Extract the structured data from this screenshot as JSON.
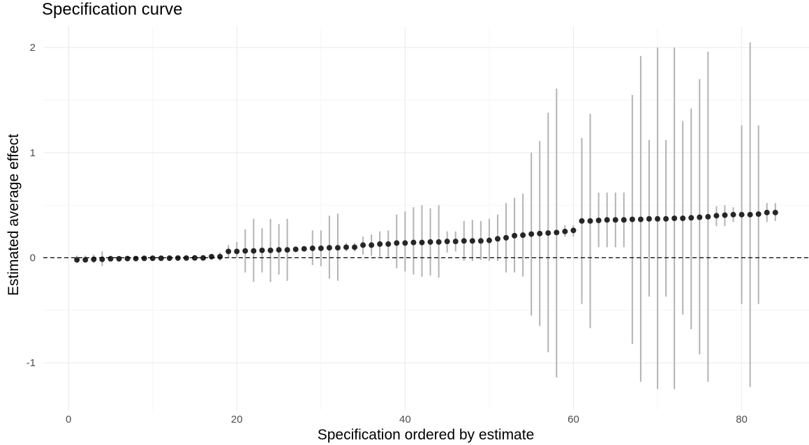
{
  "chart_data": {
    "type": "scatter",
    "title": "Specification curve",
    "xlabel": "Specification ordered by estimate",
    "ylabel": "Estimated average effect",
    "xlim": [
      -3,
      88
    ],
    "ylim": [
      -1.45,
      2.2
    ],
    "x_ticks": [
      0,
      20,
      40,
      60,
      80
    ],
    "x_tick_labels": [
      "0",
      "20",
      "40",
      "60",
      "80"
    ],
    "y_ticks": [
      -1,
      0,
      1,
      2
    ],
    "y_tick_labels": [
      "-1",
      "0",
      "1",
      "2"
    ],
    "reference_line": {
      "y": 0,
      "style": "dashed"
    },
    "grid": true,
    "legend": "none",
    "colors": {
      "point": "#262626",
      "interval": "#b3b3b3",
      "grid": "#ebebeb"
    },
    "series": [
      {
        "x": [
          1,
          2,
          3,
          4,
          5,
          6,
          7,
          8,
          9,
          10,
          11,
          12,
          13,
          14,
          15,
          16,
          17,
          18,
          19,
          20,
          21,
          22,
          23,
          24,
          25,
          26,
          27,
          28,
          29,
          30,
          31,
          32,
          33,
          34,
          35,
          36,
          37,
          38,
          39,
          40,
          41,
          42,
          43,
          44,
          45,
          46,
          47,
          48,
          49,
          50,
          51,
          52,
          53,
          54,
          55,
          56,
          57,
          58,
          59,
          60,
          61,
          62,
          63,
          64,
          65,
          66,
          67,
          68,
          69,
          70,
          71,
          72,
          73,
          74,
          75,
          76,
          77,
          78,
          79,
          80,
          81,
          82,
          83,
          84
        ],
        "estimate": [
          -0.02,
          -0.02,
          -0.015,
          -0.015,
          -0.01,
          -0.01,
          -0.008,
          -0.008,
          -0.006,
          -0.005,
          -0.005,
          -0.004,
          -0.003,
          -0.003,
          -0.002,
          -0.002,
          0.01,
          0.01,
          0.06,
          0.06,
          0.065,
          0.065,
          0.07,
          0.07,
          0.075,
          0.075,
          0.08,
          0.085,
          0.09,
          0.09,
          0.095,
          0.095,
          0.1,
          0.1,
          0.12,
          0.12,
          0.13,
          0.13,
          0.14,
          0.14,
          0.145,
          0.145,
          0.15,
          0.15,
          0.155,
          0.155,
          0.16,
          0.16,
          0.16,
          0.165,
          0.18,
          0.19,
          0.21,
          0.215,
          0.225,
          0.23,
          0.235,
          0.24,
          0.25,
          0.26,
          0.35,
          0.35,
          0.355,
          0.36,
          0.36,
          0.36,
          0.365,
          0.365,
          0.37,
          0.37,
          0.37,
          0.375,
          0.375,
          0.38,
          0.385,
          0.39,
          0.4,
          0.405,
          0.41,
          0.41,
          0.41,
          0.415,
          0.43,
          0.43
        ],
        "lower": [
          -0.05,
          -0.04,
          -0.05,
          -0.08,
          -0.03,
          -0.02,
          -0.02,
          -0.02,
          -0.02,
          -0.02,
          -0.02,
          -0.02,
          -0.02,
          -0.02,
          -0.02,
          -0.02,
          -0.01,
          -0.03,
          0.0,
          0.0,
          -0.14,
          -0.23,
          -0.14,
          -0.23,
          -0.16,
          -0.22,
          0.06,
          0.07,
          -0.07,
          -0.08,
          -0.2,
          -0.22,
          0.06,
          0.06,
          0.03,
          0.02,
          0.01,
          0.0,
          -0.1,
          -0.13,
          -0.16,
          -0.18,
          -0.17,
          -0.19,
          0.05,
          0.06,
          -0.03,
          -0.03,
          -0.02,
          -0.03,
          -0.03,
          -0.14,
          -0.14,
          -0.18,
          -0.55,
          -0.65,
          -0.9,
          -1.14,
          0.2,
          0.2,
          -0.44,
          -0.67,
          0.1,
          0.1,
          0.1,
          0.1,
          -0.82,
          -1.18,
          -0.37,
          -1.25,
          -0.37,
          -1.25,
          -0.54,
          -0.68,
          -0.92,
          -1.18,
          0.3,
          0.3,
          0.34,
          -0.44,
          -1.23,
          -0.44,
          0.34,
          0.35
        ],
        "upper": [
          0.02,
          0.02,
          0.03,
          0.06,
          0.02,
          0.01,
          0.01,
          0.01,
          0.01,
          0.01,
          0.01,
          0.01,
          0.01,
          0.01,
          0.01,
          0.02,
          0.02,
          0.05,
          0.12,
          0.15,
          0.27,
          0.37,
          0.28,
          0.37,
          0.32,
          0.37,
          0.1,
          0.1,
          0.26,
          0.26,
          0.4,
          0.42,
          0.14,
          0.14,
          0.2,
          0.22,
          0.25,
          0.26,
          0.41,
          0.44,
          0.48,
          0.5,
          0.47,
          0.5,
          0.25,
          0.25,
          0.35,
          0.36,
          0.35,
          0.37,
          0.41,
          0.52,
          0.57,
          0.61,
          1.0,
          1.11,
          1.38,
          1.61,
          0.31,
          0.31,
          1.14,
          1.37,
          0.62,
          0.62,
          0.62,
          0.62,
          1.55,
          1.92,
          1.12,
          2.0,
          1.12,
          2.0,
          1.3,
          1.42,
          1.7,
          1.96,
          0.49,
          0.5,
          0.48,
          1.26,
          2.05,
          1.26,
          0.52,
          0.52
        ]
      }
    ]
  }
}
